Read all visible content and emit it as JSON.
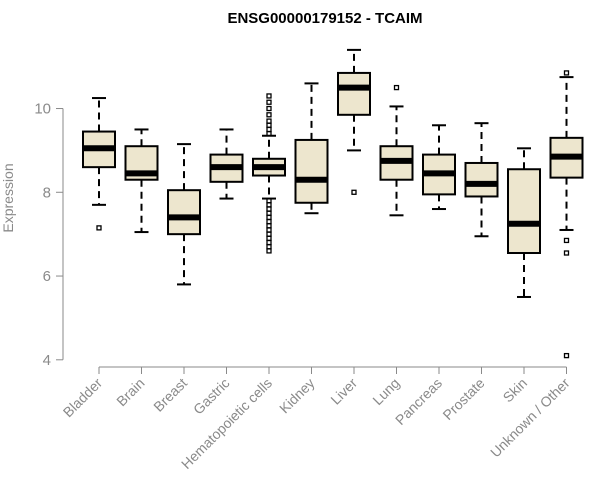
{
  "chart_data": {
    "type": "box",
    "title": "ENSG00000179152 - TCAIM",
    "ylabel": "Expression",
    "xlabel": "",
    "ylim": [
      4,
      11.5
    ],
    "yticks": [
      4,
      6,
      8,
      10
    ],
    "grid": false,
    "colors": {
      "box_fill": "#ede6ce",
      "box_stroke": "#000000",
      "axis": "#8a8a8a",
      "label": "#8a8a8a"
    },
    "categories": [
      "Bladder",
      "Brain",
      "Breast",
      "Gastric",
      "Hematopoietic cells",
      "Kidney",
      "Liver",
      "Lung",
      "Pancreas",
      "Prostate",
      "Skin",
      "Unknown / Other"
    ],
    "boxes": [
      {
        "name": "Bladder",
        "whisker_low": 7.7,
        "q1": 8.6,
        "median": 9.05,
        "q3": 9.45,
        "whisker_high": 10.25,
        "outliers": [
          7.15
        ]
      },
      {
        "name": "Brain",
        "whisker_low": 7.05,
        "q1": 8.3,
        "median": 8.45,
        "q3": 9.1,
        "whisker_high": 9.5,
        "outliers": []
      },
      {
        "name": "Breast",
        "whisker_low": 5.8,
        "q1": 7.0,
        "median": 7.4,
        "q3": 8.05,
        "whisker_high": 9.15,
        "outliers": []
      },
      {
        "name": "Gastric",
        "whisker_low": 7.85,
        "q1": 8.25,
        "median": 8.6,
        "q3": 8.9,
        "whisker_high": 9.5,
        "outliers": []
      },
      {
        "name": "Hematopoietic cells",
        "whisker_low": 7.85,
        "q1": 8.4,
        "median": 8.6,
        "q3": 8.8,
        "whisker_high": 9.35,
        "outliers": [
          10.3,
          10.15,
          10.0,
          9.85,
          9.7,
          9.6,
          9.5,
          9.4,
          7.8,
          7.7,
          7.6,
          7.5,
          7.4,
          7.3,
          7.2,
          7.1,
          7.0,
          6.9,
          6.8,
          6.7,
          6.6
        ]
      },
      {
        "name": "Kidney",
        "whisker_low": 7.5,
        "q1": 7.75,
        "median": 8.3,
        "q3": 9.25,
        "whisker_high": 10.6,
        "outliers": []
      },
      {
        "name": "Liver",
        "whisker_low": 9.0,
        "q1": 9.85,
        "median": 10.5,
        "q3": 10.85,
        "whisker_high": 11.4,
        "outliers": [
          8.0
        ]
      },
      {
        "name": "Lung",
        "whisker_low": 7.45,
        "q1": 8.3,
        "median": 8.75,
        "q3": 9.1,
        "whisker_high": 10.05,
        "outliers": [
          10.5
        ]
      },
      {
        "name": "Pancreas",
        "whisker_low": 7.6,
        "q1": 7.95,
        "median": 8.45,
        "q3": 8.9,
        "whisker_high": 9.6,
        "outliers": []
      },
      {
        "name": "Prostate",
        "whisker_low": 6.95,
        "q1": 7.9,
        "median": 8.2,
        "q3": 8.7,
        "whisker_high": 9.65,
        "outliers": []
      },
      {
        "name": "Skin",
        "whisker_low": 5.5,
        "q1": 6.55,
        "median": 7.25,
        "q3": 8.55,
        "whisker_high": 9.05,
        "outliers": []
      },
      {
        "name": "Unknown / Other",
        "whisker_low": 7.1,
        "q1": 8.35,
        "median": 8.85,
        "q3": 9.3,
        "whisker_high": 10.75,
        "outliers": [
          10.85,
          6.85,
          6.55,
          4.1
        ]
      }
    ]
  }
}
